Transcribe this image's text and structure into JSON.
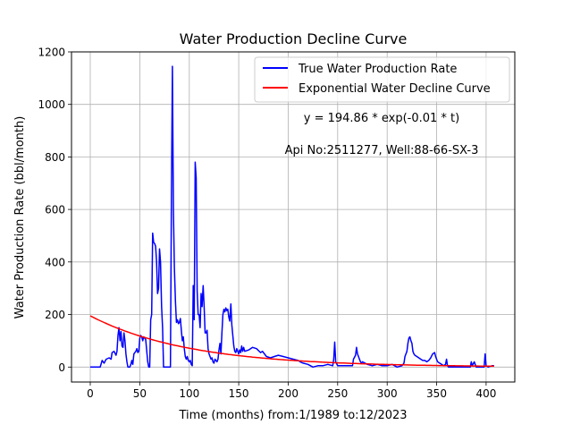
{
  "chart_data": {
    "type": "line",
    "title": "Water Production Decline Curve",
    "xlabel": "Time (months) from:1/1989 to:12/2023",
    "ylabel": "Water Production Rate (bbl/month)",
    "xlim": [
      -19,
      429
    ],
    "ylim": [
      -57,
      1200
    ],
    "xticks": [
      0,
      50,
      100,
      150,
      200,
      250,
      300,
      350,
      400
    ],
    "yticks": [
      0,
      200,
      400,
      600,
      800,
      1000,
      1200
    ],
    "grid": true,
    "legend_position": "top-right",
    "annotations": [
      "y = 194.86 * exp(-0.01 * t)",
      "Api No:2511277, Well:88-66-SX-3"
    ],
    "series": [
      {
        "name": "True Water Production Rate",
        "color": "#0000ff",
        "points": [
          [
            0,
            0
          ],
          [
            6,
            0
          ],
          [
            10,
            0
          ],
          [
            12,
            25
          ],
          [
            14,
            15
          ],
          [
            16,
            30
          ],
          [
            19,
            35
          ],
          [
            21,
            30
          ],
          [
            22,
            55
          ],
          [
            24,
            60
          ],
          [
            26,
            45
          ],
          [
            27,
            60
          ],
          [
            28,
            120
          ],
          [
            29,
            150
          ],
          [
            30,
            100
          ],
          [
            31,
            135
          ],
          [
            32,
            80
          ],
          [
            33,
            75
          ],
          [
            34,
            130
          ],
          [
            35,
            100
          ],
          [
            36,
            50
          ],
          [
            37,
            20
          ],
          [
            38,
            0
          ],
          [
            40,
            0
          ],
          [
            41,
            10
          ],
          [
            42,
            25
          ],
          [
            43,
            10
          ],
          [
            44,
            50
          ],
          [
            46,
            60
          ],
          [
            47,
            70
          ],
          [
            48,
            55
          ],
          [
            49,
            60
          ],
          [
            50,
            110
          ],
          [
            51,
            120
          ],
          [
            52,
            115
          ],
          [
            53,
            100
          ],
          [
            54,
            115
          ],
          [
            56,
            105
          ],
          [
            58,
            20
          ],
          [
            59,
            0
          ],
          [
            60,
            0
          ],
          [
            61,
            180
          ],
          [
            62,
            200
          ],
          [
            63,
            510
          ],
          [
            64,
            475
          ],
          [
            65,
            470
          ],
          [
            66,
            460
          ],
          [
            67,
            400
          ],
          [
            68,
            280
          ],
          [
            69,
            300
          ],
          [
            70,
            450
          ],
          [
            71,
            400
          ],
          [
            72,
            230
          ],
          [
            73,
            150
          ],
          [
            74,
            0
          ],
          [
            80,
            0
          ],
          [
            81,
            0
          ],
          [
            82,
            650
          ],
          [
            83,
            1145
          ],
          [
            84,
            600
          ],
          [
            85,
            380
          ],
          [
            86,
            250
          ],
          [
            87,
            170
          ],
          [
            88,
            180
          ],
          [
            89,
            165
          ],
          [
            90,
            170
          ],
          [
            91,
            185
          ],
          [
            92,
            140
          ],
          [
            93,
            100
          ],
          [
            94,
            115
          ],
          [
            95,
            70
          ],
          [
            96,
            40
          ],
          [
            97,
            30
          ],
          [
            98,
            40
          ],
          [
            99,
            25
          ],
          [
            100,
            20
          ],
          [
            101,
            25
          ],
          [
            102,
            10
          ],
          [
            103,
            5
          ],
          [
            104,
            310
          ],
          [
            105,
            180
          ],
          [
            106,
            780
          ],
          [
            107,
            720
          ],
          [
            108,
            290
          ],
          [
            109,
            200
          ],
          [
            110,
            200
          ],
          [
            111,
            150
          ],
          [
            112,
            280
          ],
          [
            113,
            230
          ],
          [
            114,
            310
          ],
          [
            115,
            230
          ],
          [
            116,
            130
          ],
          [
            117,
            130
          ],
          [
            118,
            140
          ],
          [
            119,
            70
          ],
          [
            120,
            50
          ],
          [
            121,
            40
          ],
          [
            122,
            30
          ],
          [
            123,
            35
          ],
          [
            124,
            20
          ],
          [
            125,
            15
          ],
          [
            126,
            30
          ],
          [
            127,
            25
          ],
          [
            128,
            20
          ],
          [
            129,
            30
          ],
          [
            130,
            65
          ],
          [
            131,
            90
          ],
          [
            132,
            50
          ],
          [
            133,
            130
          ],
          [
            134,
            200
          ],
          [
            135,
            220
          ],
          [
            136,
            210
          ],
          [
            137,
            225
          ],
          [
            138,
            215
          ],
          [
            139,
            220
          ],
          [
            140,
            190
          ],
          [
            141,
            175
          ],
          [
            142,
            240
          ],
          [
            143,
            160
          ],
          [
            144,
            120
          ],
          [
            145,
            80
          ],
          [
            146,
            60
          ],
          [
            147,
            55
          ],
          [
            148,
            70
          ],
          [
            149,
            60
          ],
          [
            150,
            50
          ],
          [
            151,
            65
          ],
          [
            152,
            55
          ],
          [
            153,
            80
          ],
          [
            154,
            60
          ],
          [
            155,
            75
          ],
          [
            156,
            60
          ],
          [
            160,
            65
          ],
          [
            164,
            75
          ],
          [
            168,
            70
          ],
          [
            172,
            55
          ],
          [
            174,
            60
          ],
          [
            178,
            40
          ],
          [
            182,
            35
          ],
          [
            186,
            40
          ],
          [
            190,
            45
          ],
          [
            195,
            40
          ],
          [
            200,
            35
          ],
          [
            205,
            30
          ],
          [
            210,
            25
          ],
          [
            212,
            20
          ],
          [
            215,
            15
          ],
          [
            220,
            10
          ],
          [
            225,
            0
          ],
          [
            230,
            5
          ],
          [
            235,
            5
          ],
          [
            240,
            10
          ],
          [
            245,
            5
          ],
          [
            246,
            30
          ],
          [
            247,
            95
          ],
          [
            248,
            20
          ],
          [
            250,
            5
          ],
          [
            260,
            5
          ],
          [
            265,
            5
          ],
          [
            266,
            30
          ],
          [
            268,
            45
          ],
          [
            269,
            75
          ],
          [
            270,
            50
          ],
          [
            271,
            40
          ],
          [
            272,
            30
          ],
          [
            273,
            20
          ],
          [
            274,
            15
          ],
          [
            275,
            20
          ],
          [
            280,
            10
          ],
          [
            285,
            5
          ],
          [
            290,
            10
          ],
          [
            295,
            5
          ],
          [
            300,
            5
          ],
          [
            305,
            10
          ],
          [
            310,
            0
          ],
          [
            315,
            5
          ],
          [
            317,
            15
          ],
          [
            318,
            40
          ],
          [
            320,
            60
          ],
          [
            321,
            90
          ],
          [
            322,
            110
          ],
          [
            323,
            115
          ],
          [
            324,
            100
          ],
          [
            325,
            90
          ],
          [
            326,
            60
          ],
          [
            327,
            50
          ],
          [
            328,
            45
          ],
          [
            330,
            40
          ],
          [
            332,
            35
          ],
          [
            334,
            30
          ],
          [
            336,
            25
          ],
          [
            338,
            25
          ],
          [
            340,
            20
          ],
          [
            342,
            25
          ],
          [
            344,
            35
          ],
          [
            346,
            50
          ],
          [
            348,
            55
          ],
          [
            349,
            40
          ],
          [
            350,
            30
          ],
          [
            351,
            20
          ],
          [
            353,
            15
          ],
          [
            355,
            10
          ],
          [
            357,
            5
          ],
          [
            359,
            10
          ],
          [
            360,
            30
          ],
          [
            361,
            5
          ],
          [
            362,
            0
          ],
          [
            375,
            0
          ],
          [
            380,
            0
          ],
          [
            384,
            0
          ],
          [
            385,
            20
          ],
          [
            386,
            5
          ],
          [
            388,
            20
          ],
          [
            389,
            10
          ],
          [
            390,
            0
          ],
          [
            395,
            0
          ],
          [
            398,
            0
          ],
          [
            399,
            50
          ],
          [
            400,
            5
          ],
          [
            402,
            0
          ],
          [
            406,
            5
          ],
          [
            408,
            5
          ]
        ]
      },
      {
        "name": "Exponential Water Decline Curve",
        "color": "#ff0000",
        "function": {
          "a": 194.86,
          "b": 0.01
        },
        "x_range": [
          0,
          408
        ]
      }
    ]
  }
}
